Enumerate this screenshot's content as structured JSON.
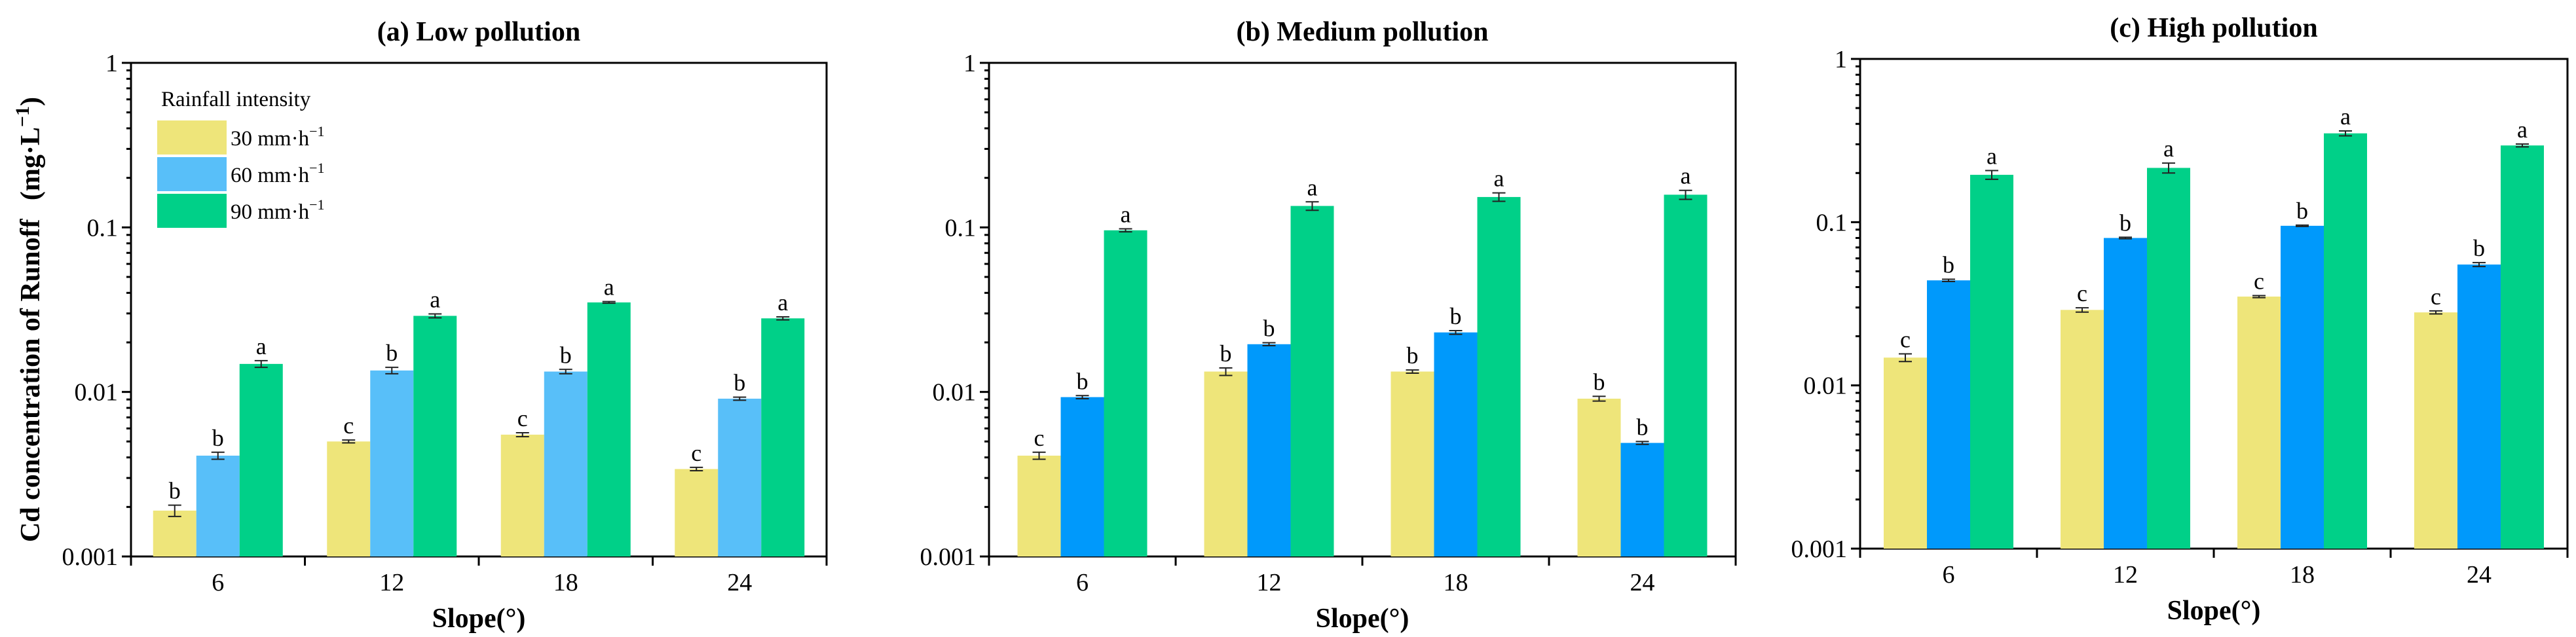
{
  "figure": {
    "ylabel": "Cd concentration of Runoff",
    "ylabel_unit_prefix": "(mg·L",
    "ylabel_unit_sup": "−1",
    "ylabel_unit_suffix": ")",
    "xlabel": "Slope(°)"
  },
  "legend": {
    "title": "Rainfall intensity",
    "entries": [
      {
        "prefix": "30 mm·h",
        "sup": "−1"
      },
      {
        "prefix": "60 mm·h",
        "sup": "−1"
      },
      {
        "prefix": "90 mm·h",
        "sup": "−1"
      }
    ]
  },
  "chart_data": [
    {
      "type": "bar",
      "title": "(a) Low pollution",
      "xlabel": "Slope(°)",
      "ylabel": "Cd concentration of Runoff (mg·L−1)",
      "yscale": "log",
      "ylim": [
        0.001,
        1
      ],
      "yticks": [
        "0.001",
        "0.01",
        "0.1",
        "1"
      ],
      "categories": [
        "6",
        "12",
        "18",
        "24"
      ],
      "colors": [
        "#EEE57A",
        "#58BFF9",
        "#00D088"
      ],
      "series": [
        {
          "name": "30 mm·h−1",
          "values": [
            0.0019,
            0.005,
            0.0055,
            0.0034
          ],
          "errors": [
            0.00015,
            0.0001,
            0.00015,
            8e-05
          ],
          "letters": [
            "b",
            "c",
            "c",
            "c"
          ]
        },
        {
          "name": "60 mm·h−1",
          "values": [
            0.0041,
            0.0135,
            0.0133,
            0.0091
          ],
          "errors": [
            0.0002,
            0.0006,
            0.0004,
            0.0002
          ],
          "letters": [
            "b",
            "b",
            "b",
            "b"
          ]
        },
        {
          "name": "90 mm·h−1",
          "values": [
            0.0148,
            0.029,
            0.035,
            0.028
          ],
          "errors": [
            0.0007,
            0.0008,
            0.0004,
            0.0006
          ],
          "letters": [
            "a",
            "a",
            "a",
            "a"
          ]
        }
      ]
    },
    {
      "type": "bar",
      "title": "(b) Medium pollution",
      "xlabel": "Slope(°)",
      "ylabel": "",
      "yscale": "log",
      "ylim": [
        0.001,
        1
      ],
      "yticks": [
        "0.001",
        "0.01",
        "0.1",
        "1"
      ],
      "categories": [
        "6",
        "12",
        "18",
        "24"
      ],
      "colors": [
        "#EEE57A",
        "#0099FB",
        "#00D088"
      ],
      "series": [
        {
          "name": "30 mm·h−1",
          "values": [
            0.0041,
            0.0133,
            0.0133,
            0.0091
          ],
          "errors": [
            0.0002,
            0.0007,
            0.0003,
            0.0003
          ],
          "letters": [
            "c",
            "b",
            "b",
            "b"
          ]
        },
        {
          "name": "60 mm·h−1",
          "values": [
            0.0093,
            0.0195,
            0.023,
            0.0049
          ],
          "errors": [
            0.0002,
            0.0004,
            0.0006,
            0.0001
          ],
          "letters": [
            "b",
            "b",
            "b",
            "b"
          ]
        },
        {
          "name": "90 mm·h−1",
          "values": [
            0.096,
            0.135,
            0.153,
            0.158
          ],
          "errors": [
            0.002,
            0.008,
            0.009,
            0.01
          ],
          "letters": [
            "a",
            "a",
            "a",
            "a"
          ]
        }
      ]
    },
    {
      "type": "bar",
      "title": "(c) High pollution",
      "xlabel": "Slope(°)",
      "ylabel": "",
      "yscale": "log",
      "ylim": [
        0.001,
        1
      ],
      "yticks": [
        "0.001",
        "0.01",
        "0.1",
        "1"
      ],
      "categories": [
        "6",
        "12",
        "18",
        "24"
      ],
      "colors": [
        "#EEE57A",
        "#0099FB",
        "#00D088"
      ],
      "series": [
        {
          "name": "30 mm·h−1",
          "values": [
            0.0148,
            0.029,
            0.035,
            0.028
          ],
          "errors": [
            0.0008,
            0.0009,
            0.0005,
            0.0006
          ],
          "letters": [
            "c",
            "c",
            "c",
            "c"
          ]
        },
        {
          "name": "60 mm·h−1",
          "values": [
            0.044,
            0.08,
            0.095,
            0.055
          ],
          "errors": [
            0.0007,
            0.0008,
            0.0009,
            0.0015
          ],
          "letters": [
            "b",
            "b",
            "b",
            "b"
          ]
        },
        {
          "name": "90 mm·h−1",
          "values": [
            0.195,
            0.215,
            0.35,
            0.295
          ],
          "errors": [
            0.012,
            0.015,
            0.012,
            0.006
          ],
          "letters": [
            "a",
            "a",
            "a",
            "a"
          ]
        }
      ]
    }
  ]
}
